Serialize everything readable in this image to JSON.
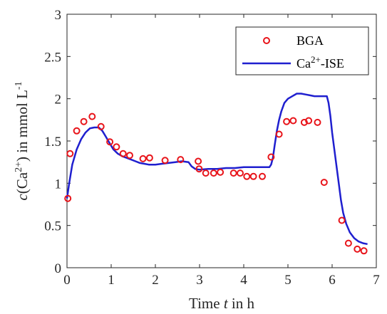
{
  "chart_data": {
    "type": "scatter",
    "title": "",
    "xlabel": {
      "pre": "Time ",
      "var": "t",
      "post": " in h"
    },
    "ylabel": {
      "var": "c",
      "open": "(Ca",
      "sup": "2+",
      "close": ") in mmol L",
      "exp": "-1"
    },
    "xlim": [
      0,
      7
    ],
    "ylim": [
      0,
      3
    ],
    "xticks": [
      "0",
      "1",
      "2",
      "3",
      "4",
      "5",
      "6",
      "7"
    ],
    "yticks": [
      "0",
      "0.5",
      "1",
      "1.5",
      "2",
      "2.5",
      "3"
    ],
    "grid": false,
    "legend_position": "top-right",
    "series": [
      {
        "name": "BGA",
        "kind": "markers",
        "color": "#e8141a",
        "points": [
          [
            0.02,
            0.82
          ],
          [
            0.07,
            1.35
          ],
          [
            0.22,
            1.62
          ],
          [
            0.38,
            1.73
          ],
          [
            0.57,
            1.79
          ],
          [
            0.77,
            1.67
          ],
          [
            0.97,
            1.49
          ],
          [
            1.12,
            1.43
          ],
          [
            1.27,
            1.35
          ],
          [
            1.42,
            1.33
          ],
          [
            1.72,
            1.29
          ],
          [
            1.87,
            1.3
          ],
          [
            2.22,
            1.27
          ],
          [
            2.57,
            1.28
          ],
          [
            2.97,
            1.26
          ],
          [
            2.99,
            1.17
          ],
          [
            3.14,
            1.12
          ],
          [
            3.32,
            1.12
          ],
          [
            3.47,
            1.13
          ],
          [
            3.77,
            1.12
          ],
          [
            3.92,
            1.12
          ],
          [
            4.07,
            1.08
          ],
          [
            4.22,
            1.08
          ],
          [
            4.42,
            1.08
          ],
          [
            4.62,
            1.31
          ],
          [
            4.8,
            1.58
          ],
          [
            4.97,
            1.73
          ],
          [
            5.12,
            1.74
          ],
          [
            5.37,
            1.72
          ],
          [
            5.47,
            1.74
          ],
          [
            5.67,
            1.72
          ],
          [
            5.82,
            1.01
          ],
          [
            6.22,
            0.56
          ],
          [
            6.37,
            0.29
          ],
          [
            6.57,
            0.22
          ],
          [
            6.72,
            0.2
          ]
        ]
      },
      {
        "name": "Ca",
        "name_sup": "2+",
        "name_post": "-ISE",
        "kind": "line",
        "color": "#1f1fcf",
        "points": [
          [
            0.0,
            0.82
          ],
          [
            0.05,
            1.0
          ],
          [
            0.12,
            1.22
          ],
          [
            0.22,
            1.4
          ],
          [
            0.32,
            1.52
          ],
          [
            0.42,
            1.6
          ],
          [
            0.52,
            1.65
          ],
          [
            0.62,
            1.66
          ],
          [
            0.72,
            1.66
          ],
          [
            0.8,
            1.62
          ],
          [
            0.88,
            1.55
          ],
          [
            0.97,
            1.47
          ],
          [
            1.05,
            1.4
          ],
          [
            1.15,
            1.35
          ],
          [
            1.25,
            1.32
          ],
          [
            1.35,
            1.3
          ],
          [
            1.45,
            1.28
          ],
          [
            1.55,
            1.26
          ],
          [
            1.65,
            1.24
          ],
          [
            1.75,
            1.23
          ],
          [
            1.85,
            1.22
          ],
          [
            2.0,
            1.22
          ],
          [
            2.15,
            1.23
          ],
          [
            2.3,
            1.24
          ],
          [
            2.45,
            1.25
          ],
          [
            2.6,
            1.26
          ],
          [
            2.75,
            1.25
          ],
          [
            2.82,
            1.2
          ],
          [
            2.9,
            1.17
          ],
          [
            3.0,
            1.16
          ],
          [
            3.2,
            1.17
          ],
          [
            3.4,
            1.17
          ],
          [
            3.6,
            1.18
          ],
          [
            3.8,
            1.18
          ],
          [
            4.0,
            1.19
          ],
          [
            4.2,
            1.19
          ],
          [
            4.4,
            1.19
          ],
          [
            4.58,
            1.19
          ],
          [
            4.62,
            1.22
          ],
          [
            4.66,
            1.3
          ],
          [
            4.7,
            1.45
          ],
          [
            4.75,
            1.62
          ],
          [
            4.8,
            1.75
          ],
          [
            4.85,
            1.85
          ],
          [
            4.92,
            1.95
          ],
          [
            5.0,
            2.0
          ],
          [
            5.1,
            2.03
          ],
          [
            5.2,
            2.06
          ],
          [
            5.3,
            2.06
          ],
          [
            5.4,
            2.05
          ],
          [
            5.5,
            2.04
          ],
          [
            5.6,
            2.03
          ],
          [
            5.7,
            2.03
          ],
          [
            5.8,
            2.03
          ],
          [
            5.88,
            2.03
          ],
          [
            5.92,
            1.95
          ],
          [
            5.96,
            1.8
          ],
          [
            6.0,
            1.6
          ],
          [
            6.05,
            1.4
          ],
          [
            6.1,
            1.2
          ],
          [
            6.15,
            1.0
          ],
          [
            6.2,
            0.8
          ],
          [
            6.25,
            0.65
          ],
          [
            6.32,
            0.52
          ],
          [
            6.4,
            0.42
          ],
          [
            6.5,
            0.35
          ],
          [
            6.6,
            0.31
          ],
          [
            6.7,
            0.29
          ],
          [
            6.8,
            0.28
          ]
        ]
      }
    ]
  }
}
